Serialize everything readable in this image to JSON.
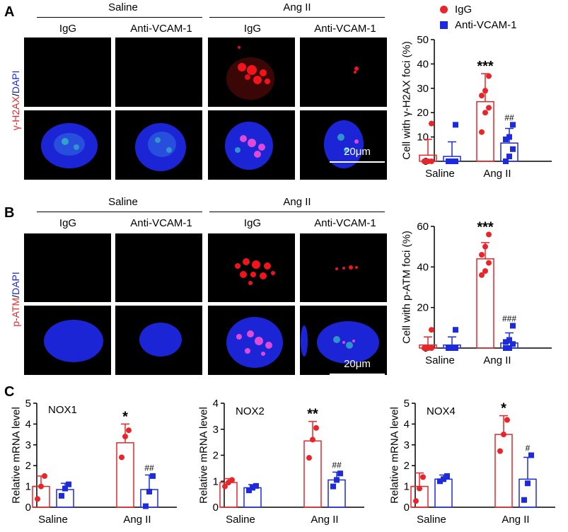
{
  "panels": {
    "A": {
      "letter": "A",
      "stain": {
        "marker": "γ-H2AX",
        "sep": "/",
        "dapi": "DAPI"
      },
      "scale": "20μm"
    },
    "B": {
      "letter": "B",
      "stain": {
        "marker": "p-ATM",
        "sep": "/",
        "dapi": "DAPI"
      },
      "scale": "20μm"
    },
    "C": {
      "letter": "C"
    }
  },
  "groups": {
    "saline": "Saline",
    "ang": "Ang II",
    "igg": "IgG",
    "anti": "Anti-VCAM-1"
  },
  "legend": {
    "igg": "IgG",
    "anti": "Anti-VCAM-1"
  },
  "colors": {
    "igg": "#e8262a",
    "anti": "#1d2bdc"
  },
  "chart_data": [
    {
      "id": "chartA",
      "type": "bar",
      "ylabel": "Cell with γ-H2AX foci (%)",
      "ylim": [
        0,
        50
      ],
      "yticks": [
        0,
        10,
        20,
        30,
        40,
        50
      ],
      "categories": [
        "Saline",
        "Ang II"
      ],
      "series": [
        {
          "name": "IgG",
          "values": [
            2.5,
            24.5
          ],
          "err": [
            6.5,
            11.5
          ],
          "points": [
            [
              0,
              0,
              0,
              0,
              0,
              15.5
            ],
            [
              12,
              20,
              22,
              27,
              29,
              35
            ]
          ],
          "sig": [
            "",
            "***"
          ]
        },
        {
          "name": "Anti-VCAM-1",
          "values": [
            2,
            7.5
          ],
          "err": [
            6,
            6
          ],
          "points": [
            [
              0,
              0,
              0,
              0,
              0,
              15
            ],
            [
              0,
              2,
              5,
              9,
              10,
              15
            ]
          ],
          "sig": [
            "",
            "##"
          ]
        }
      ]
    },
    {
      "id": "chartB",
      "type": "bar",
      "ylabel": "Cell with p-ATM foci (%)",
      "ylim": [
        0,
        60
      ],
      "yticks": [
        0,
        20,
        40,
        60
      ],
      "categories": [
        "Saline",
        "Ang II"
      ],
      "series": [
        {
          "name": "IgG",
          "values": [
            1.5,
            44
          ],
          "err": [
            4,
            8
          ],
          "points": [
            [
              0,
              0,
              0,
              0,
              0,
              9
            ],
            [
              36,
              38,
              42,
              46,
              50,
              56
            ]
          ],
          "sig": [
            "",
            "***"
          ]
        },
        {
          "name": "Anti-VCAM-1",
          "values": [
            1.5,
            2.5
          ],
          "err": [
            4,
            5
          ],
          "points": [
            [
              0,
              0,
              0,
              0,
              0,
              9
            ],
            [
              0,
              0,
              2,
              3,
              4,
              11
            ]
          ],
          "sig": [
            "",
            "###"
          ]
        }
      ]
    },
    {
      "id": "chartC1",
      "type": "bar",
      "title": "NOX1",
      "ylabel": "Relative mRNA level",
      "ylim": [
        0,
        5
      ],
      "yticks": [
        0,
        1,
        2,
        3,
        4,
        5
      ],
      "categories": [
        "Saline",
        "Ang II"
      ],
      "series": [
        {
          "name": "IgG",
          "values": [
            1,
            3.1
          ],
          "err": [
            0.5,
            0.9
          ],
          "points": [
            [
              0.4,
              1,
              1.5
            ],
            [
              2.4,
              3.4,
              3.7
            ]
          ],
          "sig": [
            "",
            "*"
          ]
        },
        {
          "name": "Anti-VCAM-1",
          "values": [
            0.85,
            0.85
          ],
          "err": [
            0.3,
            0.7
          ],
          "points": [
            [
              0.55,
              0.9,
              1.1
            ],
            [
              0.05,
              0.75,
              1.5
            ]
          ],
          "sig": [
            "",
            "##"
          ]
        }
      ]
    },
    {
      "id": "chartC2",
      "type": "bar",
      "title": "NOX2",
      "ylabel": "Relative mRNA level",
      "ylim": [
        0,
        4
      ],
      "yticks": [
        0,
        1,
        2,
        3,
        4
      ],
      "categories": [
        "Saline",
        "Ang II"
      ],
      "series": [
        {
          "name": "IgG",
          "values": [
            0.95,
            2.55
          ],
          "err": [
            0.15,
            0.75
          ],
          "points": [
            [
              0.8,
              0.95,
              1.05
            ],
            [
              1.9,
              2.6,
              3.05
            ]
          ],
          "sig": [
            "",
            "**"
          ]
        },
        {
          "name": "Anti-VCAM-1",
          "values": [
            0.75,
            1.05
          ],
          "err": [
            0.12,
            0.3
          ],
          "points": [
            [
              0.65,
              0.75,
              0.82
            ],
            [
              0.8,
              1.05,
              1.3
            ]
          ],
          "sig": [
            "",
            "##"
          ]
        }
      ]
    },
    {
      "id": "chartC3",
      "type": "bar",
      "title": "NOX4",
      "ylabel": "Relative mRNA level",
      "ylim": [
        0,
        5
      ],
      "yticks": [
        0,
        1,
        2,
        3,
        4,
        5
      ],
      "categories": [
        "Saline",
        "Ang II"
      ],
      "series": [
        {
          "name": "IgG",
          "values": [
            1,
            3.5
          ],
          "err": [
            0.65,
            0.9
          ],
          "points": [
            [
              0.3,
              0.9,
              1.45
            ],
            [
              2.7,
              3.5,
              4.2
            ]
          ],
          "sig": [
            "",
            "*"
          ]
        },
        {
          "name": "Anti-VCAM-1",
          "values": [
            1.35,
            1.35
          ],
          "err": [
            0.2,
            1.05
          ],
          "points": [
            [
              1.25,
              1.35,
              1.5
            ],
            [
              0.35,
              1.15,
              2.5
            ]
          ],
          "sig": [
            "",
            "#"
          ]
        }
      ]
    }
  ]
}
